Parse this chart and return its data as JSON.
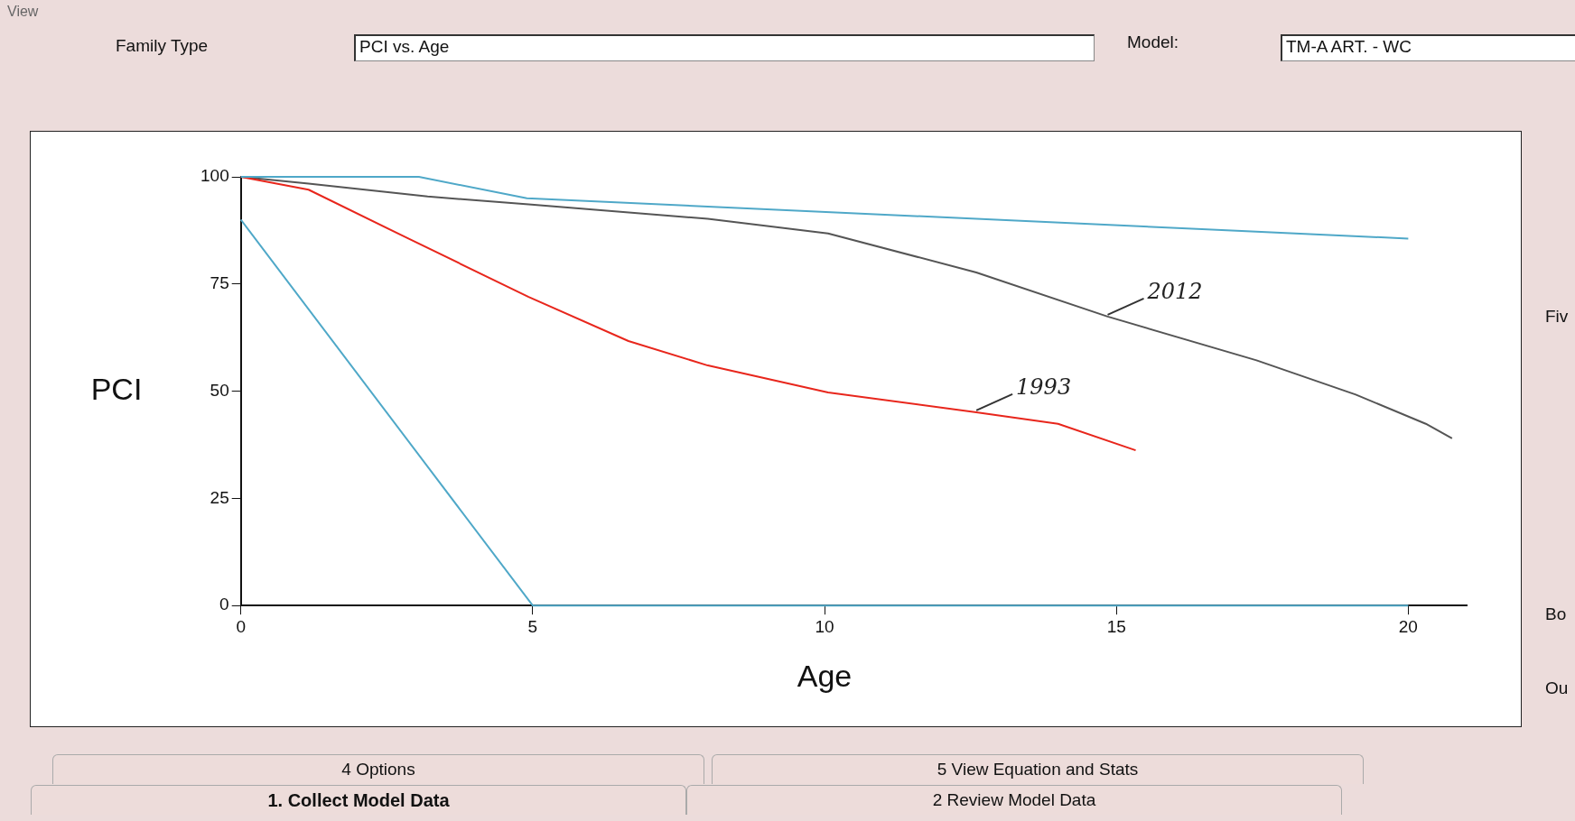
{
  "chart_data": {
    "type": "line",
    "xlabel": "Age",
    "ylabel": "PCI",
    "xlim": [
      0,
      21
    ],
    "xticks": [
      0,
      5,
      10,
      15,
      20
    ],
    "ylim": [
      0,
      100
    ],
    "yticks": [
      0,
      25,
      50,
      75,
      100
    ],
    "grid": false,
    "legend": false,
    "marker": "none",
    "line_style": "solid",
    "series": [
      {
        "color": "#4fa8c8",
        "x": [
          0,
          3.05,
          4.9,
          20
        ],
        "values": [
          100,
          100,
          95,
          85.6
        ]
      },
      {
        "color": "#4fa8c8",
        "x": [
          0,
          5,
          20
        ],
        "values": [
          90,
          0,
          0
        ]
      },
      {
        "name": "1993",
        "color": "#e8261c",
        "x": [
          0,
          1.16,
          2.87,
          4.93,
          6.64,
          8.0,
          10.06,
          12.6,
          14.0,
          15.33
        ],
        "values": [
          100,
          97,
          85.6,
          72,
          61.7,
          56,
          49.7,
          45.1,
          42.4,
          36.2
        ]
      },
      {
        "name": "2012",
        "color": "#555555",
        "x": [
          0,
          1.16,
          3.2,
          4.93,
          8,
          10.06,
          12.6,
          14.85,
          17.4,
          19.1,
          20.3,
          20.75
        ],
        "values": [
          100,
          98.4,
          95.4,
          93.6,
          90.2,
          86.8,
          77.7,
          67.4,
          57.2,
          49.2,
          42.4,
          39
        ]
      }
    ],
    "annotations": [
      "View",
      "Family Type",
      "PCI vs. Age",
      "Model:",
      "TM-A ART. - WC",
      "Fiv",
      "Bo",
      "Ou",
      "4 Options",
      "5 View Equation and Stats",
      "1. Collect Model Data",
      "2 Review Model Data"
    ]
  }
}
